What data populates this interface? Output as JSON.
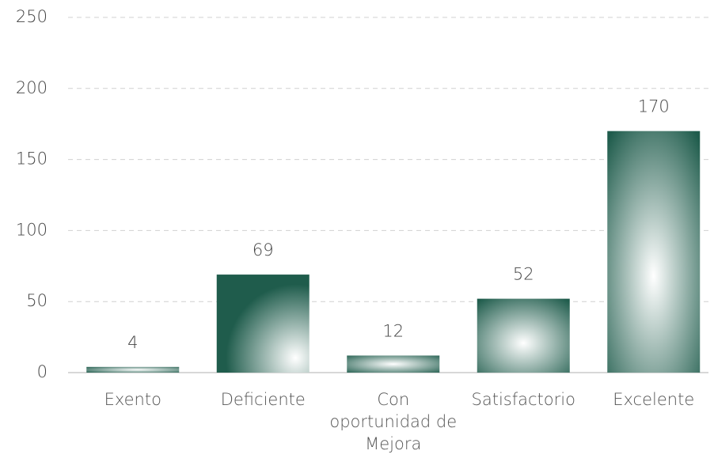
{
  "chart_data": {
    "type": "bar",
    "categories": [
      "Exento",
      "Deficiente",
      "Con oportunidad de Mejora",
      "Satisfactorio",
      "Excelente"
    ],
    "values": [
      4,
      69,
      12,
      52,
      170
    ],
    "color": "#1f5c4c",
    "ylim": [
      0,
      250
    ],
    "yticks": [
      0,
      50,
      100,
      150,
      200,
      250
    ],
    "grid": true
  }
}
